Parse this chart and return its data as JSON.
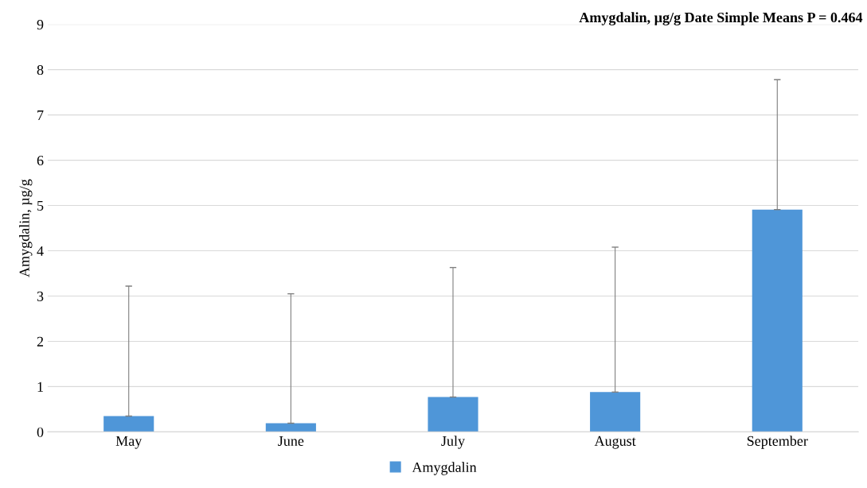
{
  "chart_data": {
    "type": "bar",
    "title": "Amygdalin, µg/g Date Simple Means P = 0.464",
    "ylabel": "Amygdalin, µg/g",
    "categories": [
      "May",
      "June",
      "July",
      "August",
      "September"
    ],
    "series": [
      {
        "name": "Amygdalin",
        "color": "#4f96d8",
        "values": [
          0.35,
          0.19,
          0.77,
          0.88,
          4.91
        ],
        "errors": [
          [
            0.35,
            3.22
          ],
          [
            0.19,
            3.05
          ],
          [
            0.77,
            3.63
          ],
          [
            0.88,
            4.08
          ],
          [
            4.91,
            7.78
          ]
        ]
      }
    ],
    "ylim": [
      0,
      9
    ],
    "yticks": [
      0,
      1,
      2,
      3,
      4,
      5,
      6,
      7,
      8,
      9
    ],
    "grid": "y",
    "legend": "bottom"
  }
}
